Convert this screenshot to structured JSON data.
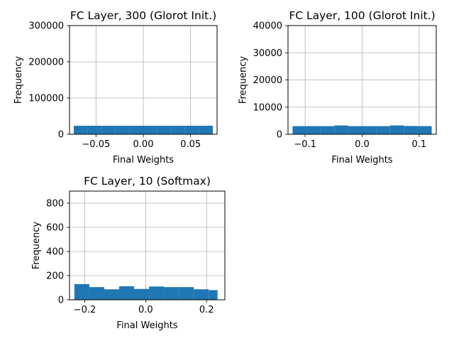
{
  "chart_data": [
    {
      "type": "bar",
      "title": "FC Layer, 300 (Glorot Init.)",
      "xlabel": "Final Weights",
      "ylabel": "Frequency",
      "xlim": [
        -0.078,
        0.078
      ],
      "ylim": [
        0,
        300000
      ],
      "xticks": [
        -0.05,
        0.0,
        0.05
      ],
      "xtick_labels": [
        "−0.05",
        "0.00",
        "0.05"
      ],
      "yticks": [
        0,
        100000,
        200000,
        300000
      ],
      "ytick_labels": [
        "0",
        "100000",
        "200000",
        "300000"
      ],
      "grid": true,
      "color": "#1f77b4",
      "bin_edges": [
        -0.0735,
        -0.0588,
        -0.0441,
        -0.0294,
        -0.0147,
        0.0,
        0.0147,
        0.0294,
        0.0441,
        0.0588,
        0.0735
      ],
      "values": [
        23500,
        23500,
        23500,
        23500,
        23500,
        23500,
        23500,
        23500,
        23500,
        23500
      ]
    },
    {
      "type": "bar",
      "title": "FC Layer, 100 (Glorot Init.)",
      "xlabel": "Final Weights",
      "ylabel": "Frequency",
      "xlim": [
        -0.13,
        0.13
      ],
      "ylim": [
        0,
        40000
      ],
      "xticks": [
        -0.1,
        0.0,
        0.1
      ],
      "xtick_labels": [
        "−0.1",
        "0.0",
        "0.1"
      ],
      "yticks": [
        0,
        10000,
        20000,
        30000,
        40000
      ],
      "ytick_labels": [
        "0",
        "10000",
        "20000",
        "30000",
        "40000"
      ],
      "grid": true,
      "color": "#1f77b4",
      "bin_edges": [
        -0.122,
        -0.0976,
        -0.0732,
        -0.0488,
        -0.0244,
        0.0,
        0.0244,
        0.0488,
        0.0732,
        0.0976,
        0.122
      ],
      "values": [
        3000,
        3000,
        3000,
        3250,
        3000,
        3000,
        3000,
        3250,
        3050,
        3000
      ]
    },
    {
      "type": "bar",
      "title": "FC Layer, 10 (Softmax)",
      "xlabel": "Final Weights",
      "ylabel": "Frequency",
      "xlim": [
        -0.25,
        0.26
      ],
      "ylim": [
        0,
        900
      ],
      "xticks": [
        -0.2,
        0.0,
        0.2
      ],
      "xtick_labels": [
        "−0.2",
        "0.0",
        "0.2"
      ],
      "yticks": [
        0,
        200,
        400,
        600,
        800
      ],
      "ytick_labels": [
        "0",
        "200",
        "400",
        "600",
        "800"
      ],
      "grid": true,
      "color": "#1f77b4",
      "bin_edges": [
        -0.234,
        -0.185,
        -0.136,
        -0.087,
        -0.038,
        0.011,
        0.06,
        0.109,
        0.158,
        0.207,
        0.236
      ],
      "values": [
        130,
        105,
        87,
        112,
        90,
        110,
        105,
        105,
        87,
        80
      ]
    }
  ]
}
